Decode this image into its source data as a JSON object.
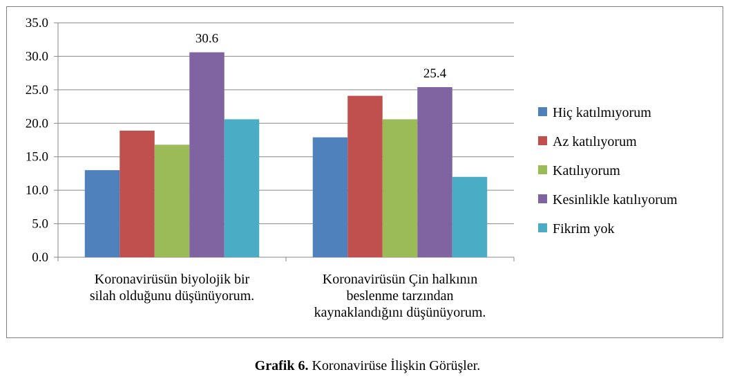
{
  "chart_data": {
    "type": "bar",
    "categories": [
      [
        "Koronavirüsün biyolojik bir",
        "silah olduğunu düşünüyorum."
      ],
      [
        "Koronavirüsün Çin halkının",
        "beslenme tarzından",
        "kaynaklandığını düşünüyorum."
      ]
    ],
    "series": [
      {
        "name": "Hiç katılmıyorum",
        "color": "#4F81BD",
        "values": [
          13.0,
          17.9
        ]
      },
      {
        "name": "Az katılıyorum",
        "color": "#C0504D",
        "values": [
          18.9,
          24.1
        ]
      },
      {
        "name": "Katılıyorum",
        "color": "#9BBB59",
        "values": [
          16.8,
          20.6
        ]
      },
      {
        "name": "Kesinlikle katılıyorum",
        "color": "#8064A2",
        "values": [
          30.6,
          25.4
        ]
      },
      {
        "name": "Fikrim yok",
        "color": "#4BACC6",
        "values": [
          20.6,
          12.0
        ]
      }
    ],
    "data_labels": [
      {
        "category": 0,
        "series": 3,
        "text": "30.6"
      },
      {
        "category": 1,
        "series": 3,
        "text": "25.4"
      }
    ],
    "yticks": [
      "0.0",
      "5.0",
      "10.0",
      "15.0",
      "20.0",
      "25.0",
      "30.0",
      "35.0"
    ],
    "ylim": [
      0,
      35
    ],
    "grid": true,
    "legend_position": "right"
  },
  "caption": {
    "bold": "Grafik 6.",
    "text": " Koronavirüse İlişkin Görüşler."
  }
}
